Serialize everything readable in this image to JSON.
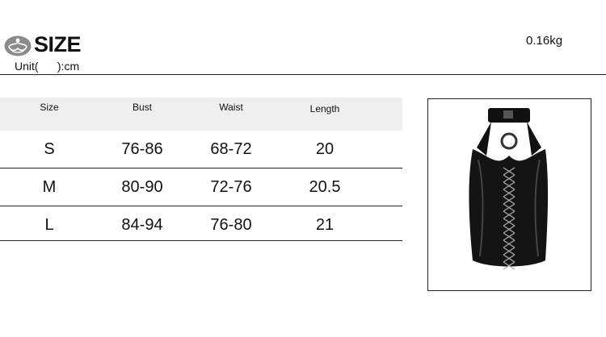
{
  "header": {
    "title": "SIZE",
    "unit": "Unit(      ):cm",
    "weight": "0.16kg",
    "logo": "lotus-figure-logo"
  },
  "table": {
    "columns": [
      "Size",
      "Bust",
      "Waist",
      "Length"
    ],
    "rows": [
      [
        "S",
        "76-86",
        "68-72",
        "20"
      ],
      [
        "M",
        "80-90",
        "72-76",
        "20.5"
      ],
      [
        "L",
        "84-94",
        "76-80",
        "21"
      ]
    ]
  },
  "product": {
    "image": "black faux-leather lace-up halter top",
    "color": "#111111"
  }
}
